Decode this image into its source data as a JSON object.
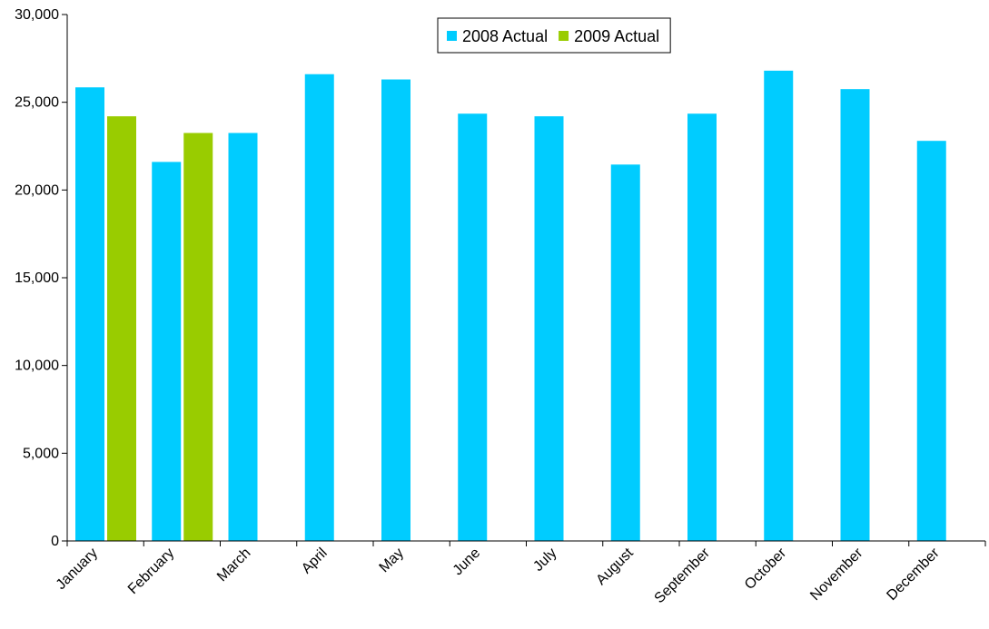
{
  "chart_data": {
    "type": "bar",
    "title": "",
    "xlabel": "",
    "ylabel": "",
    "ylim": [
      0,
      30000
    ],
    "yticks": [
      0,
      5000,
      10000,
      15000,
      20000,
      25000,
      30000
    ],
    "ytick_labels": [
      "0",
      "5,000",
      "10,000",
      "15,000",
      "20,000",
      "25,000",
      "30,000"
    ],
    "grid": false,
    "legend_position": "top-center",
    "categories": [
      "January",
      "February",
      "March",
      "April",
      "May",
      "June",
      "July",
      "August",
      "September",
      "October",
      "November",
      "December"
    ],
    "series": [
      {
        "name": "2008 Actual",
        "color": "#00CCFF",
        "values": [
          25850,
          21600,
          23250,
          26600,
          26300,
          24350,
          24200,
          21450,
          24350,
          26800,
          25750,
          22800
        ]
      },
      {
        "name": "2009 Actual",
        "color": "#99CC00",
        "values": [
          24200,
          23250,
          null,
          null,
          null,
          null,
          null,
          null,
          null,
          null,
          null,
          null
        ]
      }
    ]
  }
}
